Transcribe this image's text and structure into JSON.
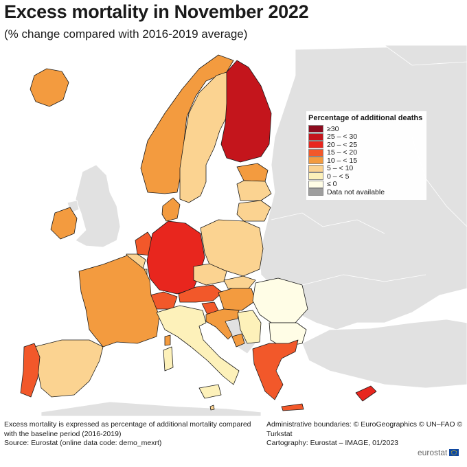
{
  "title": "Excess mortality in November 2022",
  "subtitle": "(% change compared with 2016-2019 average)",
  "legend": {
    "title": "Percentage of additional deaths",
    "classes": [
      {
        "label": "≥30",
        "color": "#8c0b1e"
      },
      {
        "label": "25 – < 30",
        "color": "#c4151c"
      },
      {
        "label": "20 – < 25",
        "color": "#e8261e"
      },
      {
        "label": "15 – < 20",
        "color": "#f2582a"
      },
      {
        "label": "10 – < 15",
        "color": "#f39b3f"
      },
      {
        "label": "5 – < 10",
        "color": "#fbd391"
      },
      {
        "label": "0 – < 5",
        "color": "#fdf1ba"
      },
      {
        "label": "≤ 0",
        "color": "#fffde6"
      },
      {
        "label": "Data not available",
        "color": "#9e9e9e"
      }
    ]
  },
  "map": {
    "sea_color": "#ffffff",
    "outside_color": "#e1e1e1",
    "countries": [
      {
        "name": "Iceland",
        "class": "10 – < 15"
      },
      {
        "name": "Ireland",
        "class": "10 – < 15"
      },
      {
        "name": "United Kingdom",
        "class": "Data not available"
      },
      {
        "name": "Norway",
        "class": "10 – < 15"
      },
      {
        "name": "Sweden",
        "class": "5 – < 10"
      },
      {
        "name": "Finland",
        "class": "25 – < 30"
      },
      {
        "name": "Estonia",
        "class": "10 – < 15"
      },
      {
        "name": "Latvia",
        "class": "5 – < 10"
      },
      {
        "name": "Lithuania",
        "class": "5 – < 10"
      },
      {
        "name": "Denmark",
        "class": "10 – < 15"
      },
      {
        "name": "Netherlands",
        "class": "15 – < 20"
      },
      {
        "name": "Belgium",
        "class": "5 – < 10"
      },
      {
        "name": "Luxembourg",
        "class": "5 – < 10"
      },
      {
        "name": "Germany",
        "class": "20 – < 25"
      },
      {
        "name": "Poland",
        "class": "5 – < 10"
      },
      {
        "name": "Czechia",
        "class": "5 – < 10"
      },
      {
        "name": "Slovakia",
        "class": "5 – < 10"
      },
      {
        "name": "Austria",
        "class": "15 – < 20"
      },
      {
        "name": "Switzerland",
        "class": "15 – < 20"
      },
      {
        "name": "Liechtenstein",
        "class": "15 – < 20"
      },
      {
        "name": "Hungary",
        "class": "10 – < 15"
      },
      {
        "name": "Slovenia",
        "class": "15 – < 20"
      },
      {
        "name": "Croatia",
        "class": "10 – < 15"
      },
      {
        "name": "France",
        "class": "10 – < 15"
      },
      {
        "name": "Spain",
        "class": "5 – < 10"
      },
      {
        "name": "Portugal",
        "class": "15 – < 20"
      },
      {
        "name": "Italy",
        "class": "0 – < 5"
      },
      {
        "name": "Malta",
        "class": "5 – < 10"
      },
      {
        "name": "Romania",
        "class": "≤ 0"
      },
      {
        "name": "Bulgaria",
        "class": "≤ 0"
      },
      {
        "name": "Montenegro",
        "class": "10 – < 15"
      },
      {
        "name": "Serbia",
        "class": "0 – < 5"
      },
      {
        "name": "Greece",
        "class": "15 – < 20"
      },
      {
        "name": "Cyprus",
        "class": "20 – < 25"
      }
    ]
  },
  "footer": {
    "note_line1": "Excess mortality is expressed as percentage of additional mortality compared",
    "note_line2": "with the baseline period (2016-2019)",
    "source": "Source: Eurostat (online data code: demo_mexrt)",
    "boundaries": "Administrative boundaries: © EuroGeographics © UN–FAO © Turkstat",
    "cartography": "Cartography: Eurostat – IMAGE, 01/2023"
  },
  "brand": "eurostat"
}
